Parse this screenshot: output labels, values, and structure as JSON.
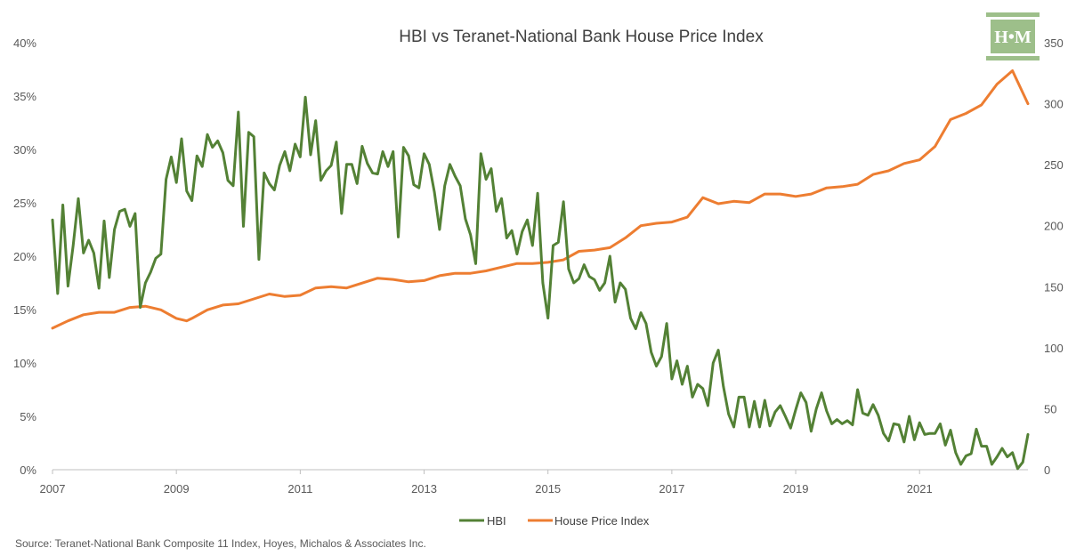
{
  "logo": {
    "text": "H•M",
    "color": "#9dbf8a"
  },
  "source": "Source: Teranet-National Bank Composite 11 Index, Hoyes, Michalos & Associates Inc.",
  "colors": {
    "hbi": "#538135",
    "hpi": "#ed7d31",
    "axis": "#bfbfbf",
    "text": "#595959"
  },
  "chart_data": {
    "type": "line",
    "title": "HBI vs Teranet-National Bank House Price Index",
    "legend": "bottom",
    "grid": false,
    "x_axis": {
      "min": 2007.0,
      "max": 2022.75,
      "ticks": [
        "2007",
        "2009",
        "2011",
        "2013",
        "2015",
        "2017",
        "2019",
        "2021"
      ]
    },
    "y_left": {
      "min": 0,
      "max": 40,
      "unit": "%",
      "ticks": [
        "0%",
        "5%",
        "10%",
        "15%",
        "20%",
        "25%",
        "30%",
        "35%",
        "40%"
      ]
    },
    "y_right": {
      "min": 0,
      "max": 350,
      "ticks": [
        "0",
        "50",
        "100",
        "150",
        "200",
        "250",
        "300",
        "350"
      ]
    },
    "series": [
      {
        "name": "HBI",
        "axis": "left",
        "unit": "%",
        "x": [
          2007.0,
          2007.083,
          2007.167,
          2007.25,
          2007.333,
          2007.417,
          2007.5,
          2007.583,
          2007.667,
          2007.75,
          2007.833,
          2007.917,
          2008.0,
          2008.083,
          2008.167,
          2008.25,
          2008.333,
          2008.417,
          2008.5,
          2008.583,
          2008.667,
          2008.75,
          2008.833,
          2008.917,
          2009.0,
          2009.083,
          2009.167,
          2009.25,
          2009.333,
          2009.417,
          2009.5,
          2009.583,
          2009.667,
          2009.75,
          2009.833,
          2009.917,
          2010.0,
          2010.083,
          2010.167,
          2010.25,
          2010.333,
          2010.417,
          2010.5,
          2010.583,
          2010.667,
          2010.75,
          2010.833,
          2010.917,
          2011.0,
          2011.083,
          2011.167,
          2011.25,
          2011.333,
          2011.417,
          2011.5,
          2011.583,
          2011.667,
          2011.75,
          2011.833,
          2011.917,
          2012.0,
          2012.083,
          2012.167,
          2012.25,
          2012.333,
          2012.417,
          2012.5,
          2012.583,
          2012.667,
          2012.75,
          2012.833,
          2012.917,
          2013.0,
          2013.083,
          2013.167,
          2013.25,
          2013.333,
          2013.417,
          2013.5,
          2013.583,
          2013.667,
          2013.75,
          2013.833,
          2013.917,
          2014.0,
          2014.083,
          2014.167,
          2014.25,
          2014.333,
          2014.417,
          2014.5,
          2014.583,
          2014.667,
          2014.75,
          2014.833,
          2014.917,
          2015.0,
          2015.083,
          2015.167,
          2015.25,
          2015.333,
          2015.417,
          2015.5,
          2015.583,
          2015.667,
          2015.75,
          2015.833,
          2015.917,
          2016.0,
          2016.083,
          2016.167,
          2016.25,
          2016.333,
          2016.417,
          2016.5,
          2016.583,
          2016.667,
          2016.75,
          2016.833,
          2016.917,
          2017.0,
          2017.083,
          2017.167,
          2017.25,
          2017.333,
          2017.417,
          2017.5,
          2017.583,
          2017.667,
          2017.75,
          2017.833,
          2017.917,
          2018.0,
          2018.083,
          2018.167,
          2018.25,
          2018.333,
          2018.417,
          2018.5,
          2018.583,
          2018.667,
          2018.75,
          2018.833,
          2018.917,
          2019.0,
          2019.083,
          2019.167,
          2019.25,
          2019.333,
          2019.417,
          2019.5,
          2019.583,
          2019.667,
          2019.75,
          2019.833,
          2019.917,
          2020.0,
          2020.083,
          2020.167,
          2020.25,
          2020.333,
          2020.417,
          2020.5,
          2020.583,
          2020.667,
          2020.75,
          2020.833,
          2020.917,
          2021.0,
          2021.083,
          2021.167,
          2021.25,
          2021.333,
          2021.417,
          2021.5,
          2021.583,
          2021.667,
          2021.75,
          2021.833,
          2021.917,
          2022.0,
          2022.083,
          2022.167,
          2022.25,
          2022.333,
          2022.417,
          2022.5,
          2022.583,
          2022.667,
          2022.75
        ],
        "values": [
          23.4,
          16.5,
          24.8,
          17.2,
          21.0,
          25.4,
          20.3,
          21.5,
          20.3,
          17.0,
          23.3,
          18.0,
          22.5,
          24.2,
          24.4,
          22.8,
          24.0,
          15.2,
          17.5,
          18.5,
          19.8,
          20.2,
          27.2,
          29.3,
          26.9,
          31.0,
          26.1,
          25.2,
          29.4,
          28.4,
          31.4,
          30.2,
          30.8,
          29.7,
          27.1,
          26.6,
          33.5,
          22.8,
          31.6,
          31.2,
          19.7,
          27.8,
          26.8,
          26.2,
          28.5,
          29.8,
          28.0,
          30.5,
          29.3,
          34.9,
          29.5,
          32.7,
          27.1,
          28.0,
          28.5,
          30.7,
          24.0,
          28.6,
          28.6,
          26.8,
          30.3,
          28.7,
          27.8,
          27.7,
          29.8,
          28.4,
          29.8,
          21.8,
          30.2,
          29.4,
          26.7,
          26.4,
          29.6,
          28.6,
          26.0,
          22.5,
          26.6,
          28.6,
          27.5,
          26.6,
          23.5,
          22.0,
          19.3,
          29.6,
          27.2,
          28.2,
          24.2,
          25.4,
          21.7,
          22.4,
          20.2,
          22.3,
          23.4,
          21.0,
          25.9,
          17.5,
          14.2,
          21.0,
          21.3,
          25.1,
          18.8,
          17.5,
          17.9,
          19.2,
          18.1,
          17.8,
          16.8,
          17.5,
          20.0,
          15.7,
          17.5,
          16.9,
          14.2,
          13.2,
          14.7,
          13.7,
          11.0,
          9.7,
          10.6,
          13.7,
          8.5,
          10.2,
          8.0,
          9.7,
          6.8,
          8.0,
          7.6,
          6.0,
          10.0,
          11.2,
          7.8,
          5.2,
          4.0,
          6.8,
          6.8,
          4.0,
          6.4,
          4.0,
          6.5,
          4.1,
          5.4,
          6.0,
          5.0,
          3.9,
          5.6,
          7.2,
          6.3,
          3.6,
          5.7,
          7.2,
          5.5,
          4.3,
          4.7,
          4.3,
          4.6,
          4.2,
          7.5,
          5.3,
          5.1,
          6.1,
          5.1,
          3.4,
          2.7,
          4.3,
          4.2,
          2.6,
          5.0,
          2.8,
          4.4,
          3.3,
          3.4,
          3.4,
          4.3,
          2.3,
          3.7,
          1.6,
          0.5,
          1.3,
          1.5,
          3.8,
          2.2,
          2.2,
          0.5,
          1.2,
          2.0,
          1.2,
          1.6,
          0.1,
          0.7,
          3.3
        ]
      },
      {
        "name": "House Price Index",
        "axis": "right",
        "x": [
          2007.0,
          2007.25,
          2007.5,
          2007.75,
          2008.0,
          2008.25,
          2008.5,
          2008.75,
          2009.0,
          2009.167,
          2009.25,
          2009.5,
          2009.75,
          2010.0,
          2010.25,
          2010.5,
          2010.75,
          2011.0,
          2011.25,
          2011.5,
          2011.75,
          2012.0,
          2012.25,
          2012.5,
          2012.75,
          2013.0,
          2013.25,
          2013.5,
          2013.75,
          2014.0,
          2014.25,
          2014.5,
          2014.75,
          2015.0,
          2015.25,
          2015.5,
          2015.75,
          2016.0,
          2016.25,
          2016.5,
          2016.75,
          2017.0,
          2017.25,
          2017.5,
          2017.75,
          2018.0,
          2018.25,
          2018.5,
          2018.75,
          2019.0,
          2019.25,
          2019.5,
          2019.75,
          2020.0,
          2020.25,
          2020.5,
          2020.75,
          2021.0,
          2021.25,
          2021.5,
          2021.75,
          2022.0,
          2022.25,
          2022.5,
          2022.75
        ],
        "values": [
          116,
          122,
          127,
          129,
          129,
          133,
          134,
          131,
          124,
          122,
          124,
          131,
          135,
          136,
          140,
          144,
          142,
          143,
          149,
          150,
          149,
          153,
          157,
          156,
          154,
          155,
          159,
          161,
          161,
          163,
          166,
          169,
          169,
          170,
          172,
          179,
          180,
          182,
          190,
          200,
          202,
          203,
          207,
          223,
          218,
          220,
          219,
          226,
          226,
          224,
          226,
          231,
          232,
          234,
          242,
          245,
          251,
          254,
          265,
          287,
          292,
          299,
          316,
          327,
          300
        ]
      }
    ]
  }
}
